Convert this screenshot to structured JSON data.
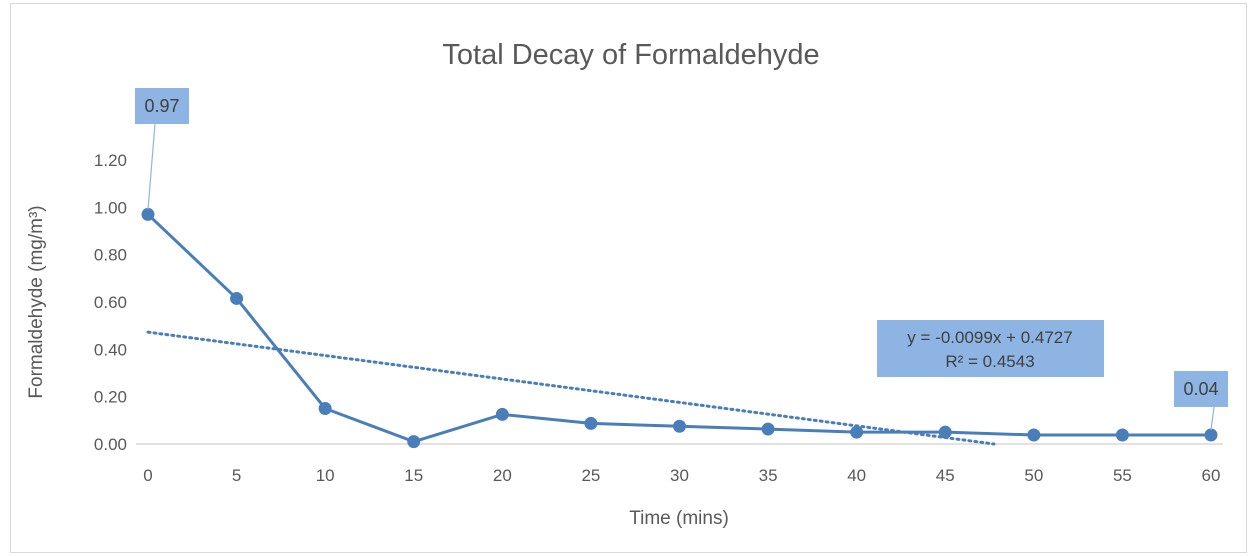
{
  "chart_data": {
    "type": "line",
    "title": "Total Decay of Formaldehyde",
    "xlabel": "Time (mins)",
    "ylabel": "Formaldehyde (mg/m³)",
    "x": [
      0,
      5,
      10,
      15,
      20,
      25,
      30,
      35,
      40,
      45,
      50,
      55,
      60
    ],
    "series": [
      {
        "values": [
          0.97,
          0.615,
          0.15,
          0.01,
          0.125,
          0.087,
          0.075,
          0.063,
          0.05,
          0.05,
          0.038,
          0.038,
          0.038
        ],
        "color": "#4a7ebb"
      }
    ],
    "xlim": [
      0,
      60
    ],
    "ylim": [
      0,
      1.2
    ],
    "x_ticks": [
      "0",
      "5",
      "10",
      "15",
      "20",
      "25",
      "30",
      "35",
      "40",
      "45",
      "50",
      "55",
      "60"
    ],
    "y_ticks": [
      "0.00",
      "0.20",
      "0.40",
      "0.60",
      "0.80",
      "1.00",
      "1.20"
    ],
    "data_labels": [
      {
        "x": 0,
        "text": "0.97"
      },
      {
        "x": 60,
        "text": "0.04"
      }
    ],
    "trendline": {
      "type": "linear",
      "slope": -0.0099,
      "intercept": 0.4727,
      "equation": "y = -0.0099x + 0.4727",
      "r_squared": "R² = 0.4543",
      "style": "dotted",
      "color": "#4a7ebb"
    },
    "label_box_color": "#8db4e2",
    "grid": false,
    "legend": "none"
  }
}
